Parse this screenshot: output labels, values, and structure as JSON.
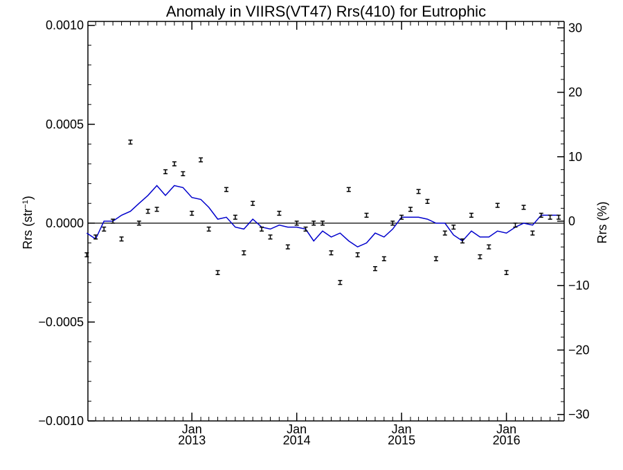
{
  "chart_data": {
    "type": "scatter",
    "title": "Anomaly in VIIRS(VT47) Rrs(410) for Eutrophic",
    "ylabel_left": {
      "base": "Rrs (str",
      "sup": "−1",
      "close": ")"
    },
    "ylabel_right": "Rrs (%)",
    "ylim": [
      -0.001,
      0.00102
    ],
    "ylim_right": [
      -31,
      31
    ],
    "xlim": [
      "2012-01-05",
      "2016-07-20"
    ],
    "left_ticks": [
      "0.0010",
      "0.0005",
      "0.0000",
      "−0.0005",
      "−0.0010"
    ],
    "left_tick_values": [
      0.001,
      0.0005,
      0.0,
      -0.0005,
      -0.001
    ],
    "right_ticks": [
      "30",
      "20",
      "10",
      "0",
      "−10",
      "−20",
      "−30"
    ],
    "right_tick_values": [
      30,
      20,
      10,
      0,
      -10,
      -20,
      -30
    ],
    "x_ticks": [
      {
        "date": "2013-01-01",
        "month": "Jan",
        "year": "2013"
      },
      {
        "date": "2014-01-01",
        "month": "Jan",
        "year": "2014"
      },
      {
        "date": "2015-01-01",
        "month": "Jan",
        "year": "2015"
      },
      {
        "date": "2016-01-01",
        "month": "Jan",
        "year": "2016"
      }
    ],
    "zero_line": true,
    "colors": {
      "points": "#000000",
      "line": "#0000cc",
      "axes": "#000000"
    },
    "series": [
      {
        "type": "scatter_errorbar",
        "x": [
          "2012-01-01",
          "2012-02-01",
          "2012-03-01",
          "2012-04-01",
          "2012-05-01",
          "2012-06-01",
          "2012-07-01",
          "2012-08-01",
          "2012-09-01",
          "2012-10-01",
          "2012-11-01",
          "2012-12-01",
          "2013-01-01",
          "2013-02-01",
          "2013-03-01",
          "2013-04-01",
          "2013-05-01",
          "2013-06-01",
          "2013-07-01",
          "2013-08-01",
          "2013-09-01",
          "2013-10-01",
          "2013-11-01",
          "2013-12-01",
          "2014-01-01",
          "2014-02-01",
          "2014-03-01",
          "2014-04-01",
          "2014-05-01",
          "2014-06-01",
          "2014-07-01",
          "2014-08-01",
          "2014-09-01",
          "2014-10-01",
          "2014-11-01",
          "2014-12-01",
          "2015-01-01",
          "2015-02-01",
          "2015-03-01",
          "2015-04-01",
          "2015-05-01",
          "2015-06-01",
          "2015-07-01",
          "2015-08-01",
          "2015-09-01",
          "2015-10-01",
          "2015-11-01",
          "2015-12-01",
          "2016-01-01",
          "2016-02-01",
          "2016-03-01",
          "2016-04-01",
          "2016-05-01",
          "2016-06-01",
          "2016-07-01"
        ],
        "y": [
          -0.00016,
          -7e-05,
          -3e-05,
          1e-05,
          -8e-05,
          0.00041,
          0.0,
          6e-05,
          7e-05,
          0.00026,
          0.0003,
          0.00025,
          5e-05,
          0.00032,
          -3e-05,
          -0.00025,
          0.00017,
          3e-05,
          -0.00015,
          0.0001,
          -3e-05,
          -7e-05,
          5e-05,
          -0.00012,
          0.0,
          -3e-05,
          0.0,
          0.0,
          -0.00015,
          -0.0003,
          0.00017,
          -0.00016,
          4e-05,
          -0.00023,
          -0.00018,
          0.0,
          3e-05,
          7e-05,
          0.00016,
          0.00011,
          -0.00018,
          -5e-05,
          -2e-05,
          -9e-05,
          4e-05,
          -0.00017,
          -0.00012,
          9e-05,
          -0.00025,
          -1e-05,
          8e-05,
          -5e-05,
          4e-05,
          3e-05,
          3e-05
        ],
        "err": 1e-05
      },
      {
        "type": "line",
        "x": [
          "2012-01-01",
          "2012-02-01",
          "2012-03-01",
          "2012-04-01",
          "2012-05-01",
          "2012-06-01",
          "2012-07-01",
          "2012-08-01",
          "2012-09-01",
          "2012-10-01",
          "2012-11-01",
          "2012-12-01",
          "2013-01-01",
          "2013-02-01",
          "2013-03-01",
          "2013-04-01",
          "2013-05-01",
          "2013-06-01",
          "2013-07-01",
          "2013-08-01",
          "2013-09-01",
          "2013-10-01",
          "2013-11-01",
          "2013-12-01",
          "2014-01-01",
          "2014-02-01",
          "2014-03-01",
          "2014-04-01",
          "2014-05-01",
          "2014-06-01",
          "2014-07-01",
          "2014-08-01",
          "2014-09-01",
          "2014-10-01",
          "2014-11-01",
          "2014-12-01",
          "2015-01-01",
          "2015-02-01",
          "2015-03-01",
          "2015-04-01",
          "2015-05-01",
          "2015-06-01",
          "2015-07-01",
          "2015-08-01",
          "2015-09-01",
          "2015-10-01",
          "2015-11-01",
          "2015-12-01",
          "2016-01-01",
          "2016-02-01",
          "2016-03-01",
          "2016-04-01",
          "2016-05-01",
          "2016-06-01",
          "2016-07-01"
        ],
        "y": [
          -5e-05,
          -8e-05,
          1e-05,
          1e-05,
          4e-05,
          6e-05,
          0.0001,
          0.00014,
          0.00019,
          0.00014,
          0.00019,
          0.00018,
          0.00013,
          0.00012,
          8e-05,
          2e-05,
          3e-05,
          -2e-05,
          -3e-05,
          2e-05,
          -2e-05,
          -3e-05,
          -1e-05,
          -2e-05,
          -2e-05,
          -3e-05,
          -9e-05,
          -4e-05,
          -7e-05,
          -5e-05,
          -9e-05,
          -0.00012,
          -0.0001,
          -5e-05,
          -7e-05,
          -3e-05,
          3e-05,
          3e-05,
          3e-05,
          2e-05,
          0.0,
          0.0,
          -6e-05,
          -9e-05,
          -4e-05,
          -7e-05,
          -7e-05,
          -4e-05,
          -5e-05,
          -2e-05,
          0.0,
          -1e-05,
          4e-05,
          4e-05,
          4e-05
        ]
      }
    ]
  }
}
